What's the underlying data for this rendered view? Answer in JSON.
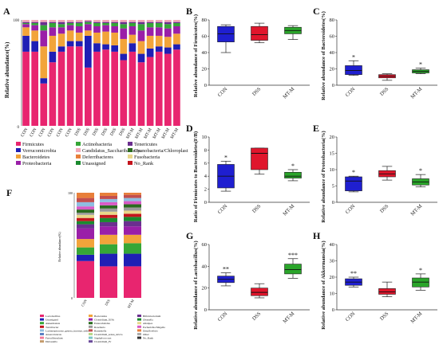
{
  "panels": {
    "A": {
      "letter": "A",
      "ylabel": "Relative abundance(%)",
      "yticks": [
        "0",
        "100"
      ],
      "samples": [
        "CON",
        "CON",
        "CON",
        "CON",
        "CON",
        "CON",
        "DSS",
        "DSS",
        "DSS",
        "DSS",
        "DSS",
        "DSS",
        "MT-M",
        "MT-M",
        "MT-M",
        "MT-M",
        "MT-M",
        "MT-M"
      ],
      "legend": [
        {
          "label": "Firmicutes",
          "color": "#e8256f"
        },
        {
          "label": "Actinobacteria",
          "color": "#36a637"
        },
        {
          "label": "Tenericutes",
          "color": "#6b2f8f"
        },
        {
          "label": "Verrucomicrobia",
          "color": "#1f1fb5"
        },
        {
          "label": "Candidatus_Saccharibacteria",
          "color": "#f2a7b8"
        },
        {
          "label": "Cyanobacteria/Chloroplast",
          "color": "#2a6b1f"
        },
        {
          "label": "Bacteroidetes",
          "color": "#f2a43a"
        },
        {
          "label": "Deferribacteres",
          "color": "#e87f3a"
        },
        {
          "label": "Fusobacteria",
          "color": "#e8d88a"
        },
        {
          "label": "Proteobacteria",
          "color": "#9a1fa8"
        },
        {
          "label": "Unassigned",
          "color": "#1a8a2e"
        },
        {
          "label": "No_Rank",
          "color": "#c4141c"
        }
      ],
      "stacks": [
        [
          70,
          15,
          8,
          3,
          1,
          1,
          2
        ],
        [
          70,
          10,
          10,
          5,
          2,
          1,
          2
        ],
        [
          40,
          5,
          30,
          15,
          5,
          3,
          2
        ],
        [
          60,
          10,
          15,
          8,
          4,
          1,
          2
        ],
        [
          70,
          5,
          12,
          6,
          3,
          2,
          2
        ],
        [
          75,
          5,
          10,
          5,
          2,
          1,
          2
        ],
        [
          75,
          5,
          8,
          6,
          3,
          1,
          2
        ],
        [
          55,
          30,
          5,
          6,
          2,
          1,
          1
        ],
        [
          70,
          8,
          10,
          6,
          3,
          1,
          2
        ],
        [
          72,
          5,
          12,
          6,
          2,
          1,
          2
        ],
        [
          70,
          6,
          12,
          6,
          3,
          1,
          2
        ],
        [
          62,
          6,
          14,
          10,
          4,
          2,
          2
        ],
        [
          70,
          8,
          8,
          8,
          3,
          1,
          2
        ],
        [
          60,
          8,
          12,
          10,
          6,
          2,
          2
        ],
        [
          65,
          8,
          12,
          8,
          4,
          1,
          2
        ],
        [
          70,
          5,
          10,
          8,
          4,
          1,
          2
        ],
        [
          68,
          6,
          10,
          8,
          4,
          2,
          2
        ],
        [
          72,
          5,
          10,
          7,
          3,
          1,
          2
        ]
      ],
      "stack_colors": [
        "#e8256f",
        "#1f1fb5",
        "#f2a43a",
        "#9a1fa8",
        "#36a637",
        "#6b2f8f",
        "#f2a7b8"
      ]
    },
    "B": {
      "letter": "B",
      "ylabel": "Relative abundance of Firmicutes(%)",
      "yticks": [
        "0",
        "20",
        "40",
        "60",
        "80"
      ],
      "ylim": [
        0,
        80
      ]
    },
    "C": {
      "letter": "C",
      "ylabel": "Relative abundance of Bacteroidetes(%)",
      "yticks": [
        "0",
        "20",
        "40",
        "60",
        "80"
      ],
      "ylim": [
        0,
        80
      ]
    },
    "D": {
      "letter": "D",
      "ylabel": "Ratio of Firmicutes to Bacteroidetes(F/B)",
      "yticks": [
        "0",
        "2",
        "4",
        "6",
        "8",
        "10"
      ],
      "ylim": [
        0,
        10
      ]
    },
    "E": {
      "letter": "E",
      "ylabel": "Relative abundance of Proteobacteria(%)",
      "yticks": [
        "0",
        "5",
        "10",
        "15",
        "20"
      ],
      "ylim": [
        0,
        20
      ]
    },
    "F": {
      "letter": "F",
      "ylabel": "Relative abundance(%)",
      "yticks": [
        "0",
        "100"
      ],
      "samples": [
        "CON",
        "DSS",
        "MT-M"
      ],
      "stack_colors": [
        "#e8256f",
        "#1f1fb5",
        "#36a637",
        "#f2a43a",
        "#9a1fa8",
        "#6b2f8f",
        "#1a8a2e",
        "#c4141c",
        "#e8d88a",
        "#9a9a9a",
        "#2a6b1f",
        "#d95ac6",
        "#8fbde0",
        "#c24e4e",
        "#e87f3a"
      ],
      "stacks": [
        [
          35,
          6,
          7,
          8,
          10,
          4,
          3,
          3,
          3,
          2,
          3,
          3,
          4,
          4,
          5
        ],
        [
          30,
          12,
          9,
          9,
          8,
          4,
          4,
          3,
          3,
          3,
          3,
          3,
          3,
          3,
          3
        ],
        [
          30,
          12,
          10,
          8,
          8,
          5,
          4,
          3,
          3,
          3,
          3,
          3,
          3,
          3,
          2
        ]
      ],
      "legend": [
        {
          "label": "Lactobacillus",
          "color": "#e8256f"
        },
        {
          "label": "Bacteroides",
          "color": "#f2a43a"
        },
        {
          "label": "Bifidobacterium",
          "color": "#6b2f8f"
        },
        {
          "label": "Unassigned",
          "color": "#1f1fb5"
        },
        {
          "label": "Clostridium_XIVa",
          "color": "#9a1fa8"
        },
        {
          "label": "Olsenella",
          "color": "#1a8a2e"
        },
        {
          "label": "Akkermansia",
          "color": "#36a637"
        },
        {
          "label": "Enterorhabdus",
          "color": "#2a6b1f"
        },
        {
          "label": "Alistipes",
          "color": "#e8d88a"
        },
        {
          "label": "Turicibacter",
          "color": "#c4141c"
        },
        {
          "label": "Roseburia",
          "color": "#9a9a9a"
        },
        {
          "label": "Escherichia/Shigella",
          "color": "#d95ac6"
        },
        {
          "label": "Lachnospiraceae_genera_incertae_sedis",
          "color": "#8fbde0"
        },
        {
          "label": "Barnesiella",
          "color": "#c24e4e"
        },
        {
          "label": "Desulfovibrio",
          "color": "#e87f3a"
        },
        {
          "label": "Anaerotruncus",
          "color": "#5a7fc4"
        },
        {
          "label": "Clostridium_sensu_stricto",
          "color": "#b8d88a"
        },
        {
          "label": "Other",
          "color": "#aaaaaa"
        },
        {
          "label": "Faecalibaculum",
          "color": "#f27a9a"
        },
        {
          "label": "Staphylococcus",
          "color": "#7ac4c4"
        },
        {
          "label": "No_Rank",
          "color": "#333333"
        },
        {
          "label": "Dubosiella",
          "color": "#c49a6a"
        },
        {
          "label": "Clostridium_IV",
          "color": "#6a4a9a"
        }
      ]
    },
    "G": {
      "letter": "G",
      "ylabel": "Relative abundance of Lactobacillus(%)",
      "yticks": [
        "0",
        "20",
        "40",
        "60"
      ],
      "ylim": [
        0,
        60
      ]
    },
    "H": {
      "letter": "H",
      "ylabel": "Relative abundance of Akkermansia(%)",
      "yticks": [
        "0",
        "10",
        "20",
        "30",
        "40"
      ],
      "ylim": [
        0,
        40
      ]
    }
  },
  "box_groups": [
    "CON",
    "DSS",
    "MT-M"
  ],
  "box_colors": [
    "#1f1fd0",
    "#e0162c",
    "#2aa52a"
  ],
  "chart_data": [
    {
      "type": "bar",
      "panel": "A",
      "stacked": true,
      "categories": [
        "CON",
        "CON",
        "CON",
        "CON",
        "CON",
        "CON",
        "DSS",
        "DSS",
        "DSS",
        "DSS",
        "DSS",
        "DSS",
        "MT-M",
        "MT-M",
        "MT-M",
        "MT-M",
        "MT-M",
        "MT-M"
      ],
      "ylabel": "Relative abundance(%)",
      "ylim": [
        0,
        100
      ]
    },
    {
      "type": "box",
      "panel": "B",
      "ylabel": "Relative abundance of Firmicutes(%)",
      "ylim": [
        0,
        80
      ],
      "categories": [
        "CON",
        "DSS",
        "MT-M"
      ],
      "boxes": [
        {
          "min": 40,
          "q1": 53,
          "median": 63,
          "q3": 72,
          "max": 74,
          "sig": ""
        },
        {
          "min": 52,
          "q1": 55,
          "median": 62,
          "q3": 72,
          "max": 76,
          "sig": ""
        },
        {
          "min": 56,
          "q1": 63,
          "median": 67,
          "q3": 71,
          "max": 73,
          "sig": ""
        }
      ]
    },
    {
      "type": "box",
      "panel": "C",
      "ylabel": "Relative abundance of Bacteroidetes(%)",
      "ylim": [
        0,
        80
      ],
      "categories": [
        "CON",
        "DSS",
        "MT-M"
      ],
      "boxes": [
        {
          "min": 12,
          "q1": 13,
          "median": 18,
          "q3": 24,
          "max": 30,
          "sig": "*"
        },
        {
          "min": 6,
          "q1": 9,
          "median": 11,
          "q3": 13,
          "max": 14,
          "sig": ""
        },
        {
          "min": 14,
          "q1": 15,
          "median": 17,
          "q3": 19,
          "max": 21,
          "sig": "*"
        }
      ]
    },
    {
      "type": "box",
      "panel": "D",
      "ylabel": "Ratio of Firmicutes to Bacteroidetes(F/B)",
      "ylim": [
        0,
        10
      ],
      "categories": [
        "CON",
        "DSS",
        "MT-M"
      ],
      "boxes": [
        {
          "min": 1.7,
          "q1": 2.2,
          "median": 4.0,
          "q3": 5.8,
          "max": 6.3,
          "sig": "*"
        },
        {
          "min": 4.3,
          "q1": 5.0,
          "median": 7.5,
          "q3": 8.3,
          "max": 8.3,
          "sig": ""
        },
        {
          "min": 3.3,
          "q1": 3.7,
          "median": 4.0,
          "q3": 4.6,
          "max": 5.0,
          "sig": "*"
        }
      ]
    },
    {
      "type": "box",
      "panel": "E",
      "ylabel": "Relative abundance of Proteobacteria(%)",
      "ylim": [
        0,
        20
      ],
      "categories": [
        "CON",
        "DSS",
        "MT-M"
      ],
      "boxes": [
        {
          "min": 3.2,
          "q1": 3.5,
          "median": 6.5,
          "q3": 7.8,
          "max": 8.0,
          "sig": "*"
        },
        {
          "min": 6.8,
          "q1": 7.8,
          "median": 8.7,
          "q3": 9.7,
          "max": 11.0,
          "sig": ""
        },
        {
          "min": 4.7,
          "q1": 5.3,
          "median": 6.2,
          "q3": 7.2,
          "max": 8.5,
          "sig": "*"
        }
      ]
    },
    {
      "type": "bar",
      "panel": "F",
      "stacked": true,
      "categories": [
        "CON",
        "DSS",
        "MT-M"
      ],
      "ylabel": "Relative abundance(%)",
      "ylim": [
        0,
        100
      ]
    },
    {
      "type": "box",
      "panel": "G",
      "ylabel": "Relative abundance of Lactobacillus(%)",
      "ylim": [
        0,
        60
      ],
      "categories": [
        "CON",
        "DSS",
        "MT-M"
      ],
      "boxes": [
        {
          "min": 22,
          "q1": 25,
          "median": 28,
          "q3": 31,
          "max": 34,
          "sig": "**"
        },
        {
          "min": 11,
          "q1": 13,
          "median": 16,
          "q3": 20,
          "max": 24,
          "sig": ""
        },
        {
          "min": 29,
          "q1": 33,
          "median": 37,
          "q3": 42,
          "max": 47,
          "sig": "***"
        }
      ]
    },
    {
      "type": "box",
      "panel": "H",
      "ylabel": "Relative abundance of Akkermansia(%)",
      "ylim": [
        0,
        40
      ],
      "categories": [
        "CON",
        "DSS",
        "MT-M"
      ],
      "boxes": [
        {
          "min": 14,
          "q1": 15,
          "median": 17,
          "q3": 19,
          "max": 20,
          "sig": "**"
        },
        {
          "min": 8,
          "q1": 9.5,
          "median": 11,
          "q3": 13,
          "max": 17,
          "sig": ""
        },
        {
          "min": 12,
          "q1": 14,
          "median": 17,
          "q3": 19.5,
          "max": 22,
          "sig": "*"
        }
      ]
    }
  ]
}
